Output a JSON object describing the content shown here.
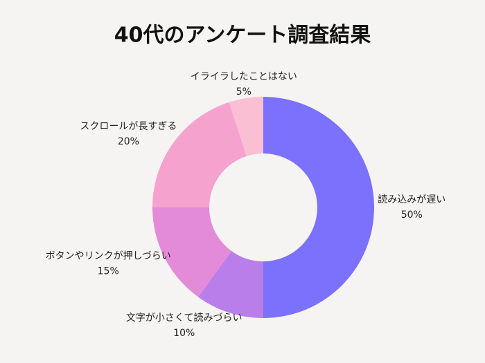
{
  "chart_data": {
    "type": "donut",
    "title": "40代のアンケート調査結果",
    "categories": [
      "読み込みが遅い",
      "文字が小さくて読みづらい",
      "ボタンやリンクが押しづらい",
      "スクロールが長すぎる",
      "イライラしたことはない"
    ],
    "values": [
      50,
      10,
      15,
      20,
      5
    ],
    "value_labels": [
      "50%",
      "10%",
      "15%",
      "20%",
      "5%"
    ],
    "colors": [
      "#7b71fc",
      "#b97ee9",
      "#e38ad9",
      "#f6a2cf",
      "#fbbfd4"
    ]
  }
}
